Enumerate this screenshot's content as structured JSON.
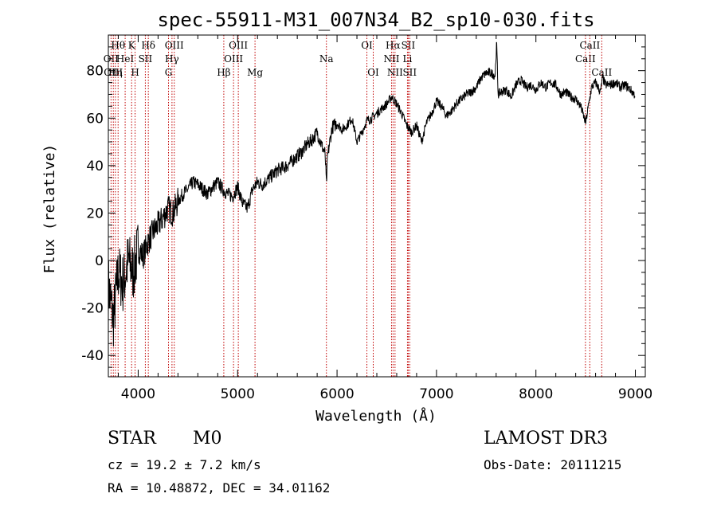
{
  "chart_data": {
    "type": "line",
    "title": "spec-55911-M31_007N34_B2_sp10-030.fits",
    "xlabel": "Wavelength (Å)",
    "ylabel": "Flux (relative)",
    "xlim": [
      3700,
      9100
    ],
    "ylim": [
      -49,
      95
    ],
    "xticks": [
      4000,
      5000,
      6000,
      7000,
      8000,
      9000
    ],
    "yticks": [
      -40,
      -20,
      0,
      20,
      40,
      60,
      80
    ],
    "grid": false,
    "series": [
      {
        "name": "flux",
        "x": [
          3700,
          3750,
          3800,
          3850,
          3900,
          3950,
          4000,
          4050,
          4100,
          4150,
          4200,
          4250,
          4300,
          4350,
          4400,
          4450,
          4500,
          4550,
          4600,
          4650,
          4700,
          4750,
          4800,
          4850,
          4900,
          4950,
          5000,
          5050,
          5100,
          5150,
          5200,
          5250,
          5300,
          5350,
          5400,
          5450,
          5500,
          5550,
          5600,
          5650,
          5700,
          5750,
          5800,
          5850,
          5880,
          5893,
          5905,
          5950,
          6000,
          6050,
          6100,
          6150,
          6200,
          6250,
          6300,
          6350,
          6400,
          6450,
          6500,
          6550,
          6600,
          6650,
          6700,
          6750,
          6800,
          6850,
          6900,
          6950,
          7000,
          7050,
          7100,
          7150,
          7200,
          7250,
          7300,
          7350,
          7400,
          7450,
          7500,
          7550,
          7590,
          7605,
          7620,
          7650,
          7700,
          7750,
          7800,
          7850,
          7900,
          7950,
          8000,
          8050,
          8100,
          8150,
          8200,
          8250,
          8300,
          8350,
          8400,
          8450,
          8500,
          8540,
          8560,
          8600,
          8650,
          8670,
          8700,
          8750,
          8800,
          8850,
          8900,
          8950,
          8990
        ],
        "values": [
          -10,
          -25,
          -5,
          -10,
          0,
          -5,
          5,
          2,
          8,
          12,
          15,
          18,
          22,
          20,
          25,
          28,
          30,
          33,
          32,
          30,
          28,
          31,
          33,
          30,
          28,
          27,
          31,
          24,
          22,
          30,
          33,
          32,
          34,
          36,
          38,
          39,
          40,
          42,
          44,
          46,
          49,
          51,
          54,
          48,
          45,
          32,
          44,
          56,
          58,
          55,
          57,
          60,
          50,
          54,
          59,
          60,
          62,
          64,
          66,
          69,
          66,
          62,
          57,
          54,
          57,
          50,
          58,
          62,
          67,
          65,
          61,
          63,
          66,
          68,
          70,
          71,
          73,
          77,
          79,
          79,
          78,
          92,
          70,
          71,
          72,
          69,
          74,
          76,
          73,
          74,
          72,
          75,
          73,
          75,
          74,
          70,
          71,
          69,
          68,
          65,
          58,
          68,
          73,
          75,
          71,
          77,
          74,
          74,
          75,
          73,
          74,
          72,
          70
        ]
      }
    ],
    "line_markers": [
      {
        "wavelength": 3727,
        "row1": "",
        "row2": "OII",
        "row3": ""
      },
      {
        "wavelength": 3750,
        "row1": "",
        "row2": "",
        "row3": "OIII"
      },
      {
        "wavelength": 3771,
        "row1": "",
        "row2": "",
        "row3": "Hη"
      },
      {
        "wavelength": 3798,
        "row1": "Hθ",
        "row2": "",
        "row3": ""
      },
      {
        "wavelength": 3869,
        "row1": "",
        "row2": "HeI",
        "row3": ""
      },
      {
        "wavelength": 3934,
        "row1": "K",
        "row2": "",
        "row3": ""
      },
      {
        "wavelength": 3969,
        "row1": "",
        "row2": "",
        "row3": "H"
      },
      {
        "wavelength": 4072,
        "row1": "",
        "row2": "SII",
        "row3": ""
      },
      {
        "wavelength": 4102,
        "row1": "Hδ",
        "row2": "",
        "row3": ""
      },
      {
        "wavelength": 4305,
        "row1": "",
        "row2": "",
        "row3": "G"
      },
      {
        "wavelength": 4340,
        "row1": "",
        "row2": "Hγ",
        "row3": ""
      },
      {
        "wavelength": 4363,
        "row1": "OIII",
        "row2": "",
        "row3": ""
      },
      {
        "wavelength": 4861,
        "row1": "",
        "row2": "",
        "row3": "Hβ"
      },
      {
        "wavelength": 4959,
        "row1": "",
        "row2": "OIII",
        "row3": ""
      },
      {
        "wavelength": 5007,
        "row1": "OIII",
        "row2": "",
        "row3": ""
      },
      {
        "wavelength": 5175,
        "row1": "",
        "row2": "",
        "row3": "Mg"
      },
      {
        "wavelength": 5893,
        "row1": "",
        "row2": "Na",
        "row3": ""
      },
      {
        "wavelength": 6300,
        "row1": "OI",
        "row2": "",
        "row3": ""
      },
      {
        "wavelength": 6364,
        "row1": "",
        "row2": "",
        "row3": "OI"
      },
      {
        "wavelength": 6548,
        "row1": "",
        "row2": "NII",
        "row3": ""
      },
      {
        "wavelength": 6563,
        "row1": "Hα",
        "row2": "",
        "row3": ""
      },
      {
        "wavelength": 6583,
        "row1": "",
        "row2": "",
        "row3": "NII"
      },
      {
        "wavelength": 6708,
        "row1": "",
        "row2": "Li",
        "row3": ""
      },
      {
        "wavelength": 6716,
        "row1": "SII",
        "row2": "",
        "row3": ""
      },
      {
        "wavelength": 6731,
        "row1": "",
        "row2": "",
        "row3": "SII"
      },
      {
        "wavelength": 8498,
        "row1": "",
        "row2": "CaII",
        "row3": ""
      },
      {
        "wavelength": 8542,
        "row1": "CaII",
        "row2": "",
        "row3": ""
      },
      {
        "wavelength": 8662,
        "row1": "",
        "row2": "",
        "row3": "CaII"
      }
    ],
    "marker_color": "#c00000"
  },
  "info": {
    "class_label": "STAR",
    "subclass_label": "M0",
    "survey_label": "LAMOST DR3",
    "cz_text": "cz = 19.2 ± 7.2 km/s",
    "obs_date_text": "Obs-Date: 20111215",
    "coords_text": "RA =  10.48872, DEC =  34.01162"
  }
}
